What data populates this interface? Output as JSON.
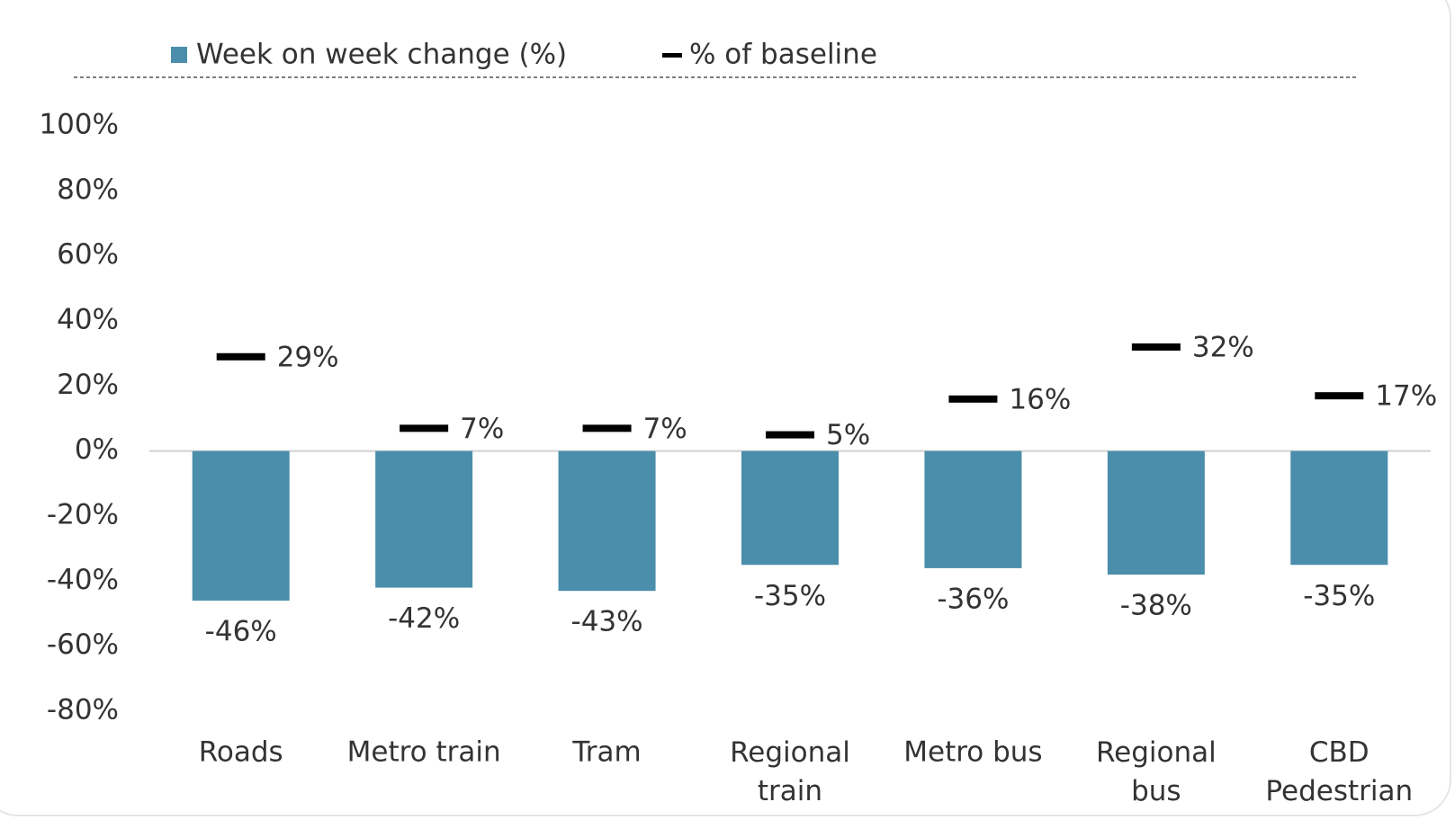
{
  "chart_data": {
    "type": "bar",
    "categories": [
      "Roads",
      "Metro train",
      "Tram",
      "Regional train",
      "Metro bus",
      "Regional bus",
      "CBD Pedestrian"
    ],
    "series": [
      {
        "name": "Week on week change (%)",
        "color": "#4a8eab",
        "type": "bar",
        "values": [
          -46,
          -42,
          -43,
          -35,
          -36,
          -38,
          -35
        ],
        "value_labels": [
          "-46%",
          "-42%",
          "-43%",
          "-35%",
          "-36%",
          "-38%",
          "-35%"
        ]
      },
      {
        "name": "% of baseline",
        "color": "#000000",
        "type": "marker",
        "values": [
          29,
          7,
          7,
          5,
          16,
          32,
          17
        ],
        "value_labels": [
          "29%",
          "7%",
          "7%",
          "5%",
          "16%",
          "32%",
          "17%"
        ]
      }
    ],
    "ylim": [
      -80,
      100
    ],
    "yticks": [
      {
        "value": -80,
        "label": "-80%"
      },
      {
        "value": -60,
        "label": "-60%"
      },
      {
        "value": -40,
        "label": "-40%"
      },
      {
        "value": -20,
        "label": "-20%"
      },
      {
        "value": 0,
        "label": "0%"
      },
      {
        "value": 20,
        "label": "20%"
      },
      {
        "value": 40,
        "label": "40%"
      },
      {
        "value": 60,
        "label": "60%"
      },
      {
        "value": 80,
        "label": "80%"
      },
      {
        "value": 100,
        "label": "100%"
      }
    ],
    "legend": "top"
  }
}
